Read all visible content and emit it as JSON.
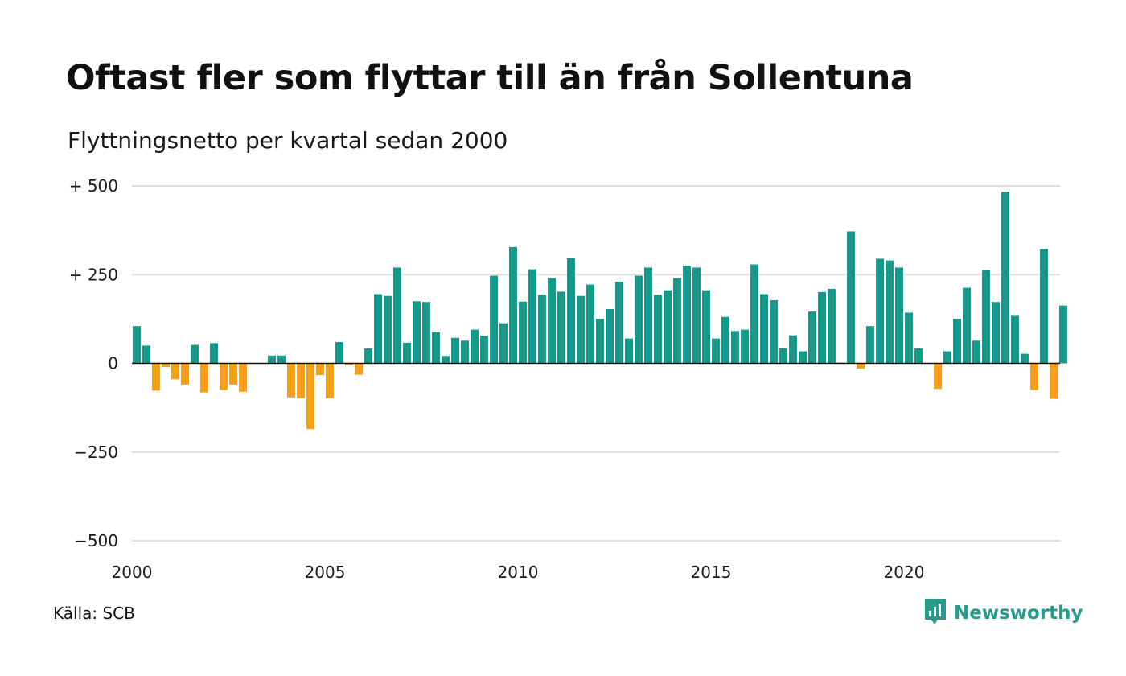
{
  "header": {
    "title": "Oftast fler som flyttar till än från Sollentuna",
    "subtitle": "Flyttningsnetto per kvartal sedan 2000"
  },
  "footer": {
    "source": "Källa: SCB",
    "brand": "Newsworthy",
    "brand_icon": "bar-chart-speech-bubble-icon"
  },
  "colors": {
    "positive": "#17988a",
    "negative": "#f5a01d",
    "brand": "#2a9a8c",
    "grid": "#dddddd",
    "zero_line": "#111111"
  },
  "chart_data": {
    "type": "bar",
    "title": "Oftast fler som flyttar till än från Sollentuna",
    "subtitle": "Flyttningsnetto per kvartal sedan 2000",
    "xlabel": "",
    "ylabel": "",
    "ylim": [
      -500,
      500
    ],
    "y_ticks": [
      500,
      250,
      0,
      -250,
      -500
    ],
    "y_tick_labels": [
      "+ 500",
      "+ 250",
      "0",
      "−250",
      "−500"
    ],
    "x_ticks": [
      2000,
      2005,
      2010,
      2015,
      2020
    ],
    "x_tick_labels": [
      "2000",
      "2005",
      "2010",
      "2015",
      "2020"
    ],
    "grid": true,
    "frequency": "quarterly",
    "categories": [
      "2000 Q1",
      "2000 Q2",
      "2000 Q3",
      "2000 Q4",
      "2001 Q1",
      "2001 Q2",
      "2001 Q3",
      "2001 Q4",
      "2002 Q1",
      "2002 Q2",
      "2002 Q3",
      "2002 Q4",
      "2003 Q1",
      "2003 Q2",
      "2003 Q3",
      "2003 Q4",
      "2004 Q1",
      "2004 Q2",
      "2004 Q3",
      "2004 Q4",
      "2005 Q1",
      "2005 Q2",
      "2005 Q3",
      "2005 Q4",
      "2006 Q1",
      "2006 Q2",
      "2006 Q3",
      "2006 Q4",
      "2007 Q1",
      "2007 Q2",
      "2007 Q3",
      "2007 Q4",
      "2008 Q1",
      "2008 Q2",
      "2008 Q3",
      "2008 Q4",
      "2009 Q1",
      "2009 Q2",
      "2009 Q3",
      "2009 Q4",
      "2010 Q1",
      "2010 Q2",
      "2010 Q3",
      "2010 Q4",
      "2011 Q1",
      "2011 Q2",
      "2011 Q3",
      "2011 Q4",
      "2012 Q1",
      "2012 Q2",
      "2012 Q3",
      "2012 Q4",
      "2013 Q1",
      "2013 Q2",
      "2013 Q3",
      "2013 Q4",
      "2014 Q1",
      "2014 Q2",
      "2014 Q3",
      "2014 Q4",
      "2015 Q1",
      "2015 Q2",
      "2015 Q3",
      "2015 Q4",
      "2016 Q1",
      "2016 Q2",
      "2016 Q3",
      "2016 Q4",
      "2017 Q1",
      "2017 Q2",
      "2017 Q3",
      "2017 Q4",
      "2018 Q1",
      "2018 Q2",
      "2018 Q3",
      "2018 Q4",
      "2019 Q1",
      "2019 Q2",
      "2019 Q3",
      "2019 Q4",
      "2020 Q1",
      "2020 Q2",
      "2020 Q3",
      "2020 Q4",
      "2021 Q1",
      "2021 Q2",
      "2021 Q3",
      "2021 Q4",
      "2022 Q1",
      "2022 Q2",
      "2022 Q3",
      "2022 Q4",
      "2023 Q1",
      "2023 Q2",
      "2023 Q3",
      "2023 Q4",
      "2024 Q1"
    ],
    "values": [
      105,
      50,
      -77,
      -10,
      -45,
      -60,
      52,
      -82,
      57,
      -75,
      -60,
      -80,
      0,
      0,
      22,
      22,
      -96,
      -98,
      -185,
      -33,
      -98,
      60,
      -5,
      -32,
      42,
      195,
      190,
      270,
      58,
      175,
      173,
      88,
      21,
      72,
      64,
      95,
      78,
      247,
      113,
      328,
      174,
      265,
      193,
      240,
      202,
      297,
      190,
      222,
      125,
      153,
      230,
      70,
      247,
      270,
      193,
      206,
      240,
      275,
      270,
      206,
      70,
      131,
      91,
      95,
      279,
      195,
      178,
      43,
      79,
      34,
      146,
      201,
      210,
      2,
      372,
      -15,
      105,
      295,
      290,
      270,
      143,
      42,
      0,
      -72,
      34,
      125,
      213,
      64,
      263,
      173,
      483,
      134,
      27,
      -75,
      322,
      -100,
      163
    ]
  }
}
